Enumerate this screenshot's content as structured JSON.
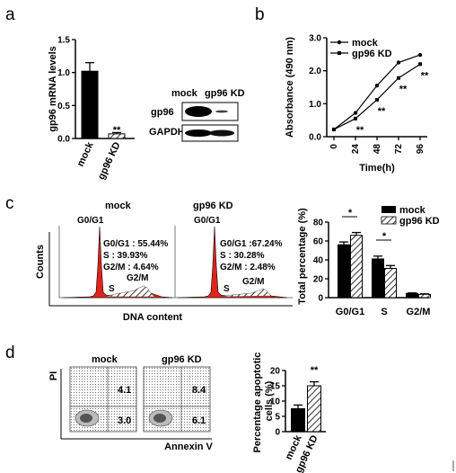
{
  "panels": {
    "a": "a",
    "b": "b",
    "c": "c",
    "d": "d"
  },
  "chart_data": [
    {
      "id": "a_bar",
      "type": "bar",
      "categories": [
        "mock",
        "gp96 KD"
      ],
      "values": [
        1.02,
        0.07
      ],
      "errors": [
        0.13,
        0.02
      ],
      "ylabel": "gp96 mRNA levels",
      "ylim": [
        0,
        1.5
      ],
      "yticks": [
        "0.0",
        "0.5",
        "1.0",
        "1.5"
      ],
      "annotations": [
        "**"
      ]
    },
    {
      "id": "a_blot",
      "type": "table",
      "columns": [
        "mock",
        "gp96 KD"
      ],
      "rows": [
        "gp96",
        "GAPDH"
      ]
    },
    {
      "id": "b_line",
      "type": "line",
      "x": [
        0,
        24,
        48,
        72,
        96
      ],
      "series": [
        {
          "name": "mock",
          "values": [
            0.22,
            0.72,
            1.55,
            2.25,
            2.48
          ]
        },
        {
          "name": "gp96 KD",
          "values": [
            0.22,
            0.55,
            1.12,
            1.78,
            2.2
          ]
        }
      ],
      "xlabel": "Time(h)",
      "ylabel": "Absorbance (490 nm)",
      "ylim": [
        0,
        3
      ],
      "yticks": [
        "0.0",
        "1.0",
        "2.0",
        "3.0"
      ],
      "xticks": [
        "0",
        "24",
        "48",
        "72",
        "96"
      ],
      "annotations": [
        "**",
        "**",
        "**",
        "**"
      ]
    },
    {
      "id": "c_flow",
      "type": "area",
      "xlabel": "DNA  content",
      "ylabel": "Counts",
      "histograms": [
        {
          "title": "mock",
          "peak": "G0/G1",
          "s": "S",
          "g2m": "G2/M",
          "stats": [
            "G0/G1 : 55.44%",
            "S  : 39.93%",
            "G2/M : 4.64%"
          ]
        },
        {
          "title": "gp96 KD",
          "peak": "G0/G1",
          "s": "S",
          "g2m": "G2/M",
          "stats": [
            "G0/G1 :67.24%",
            "S  : 30.28%",
            "G2/M : 2.48%"
          ]
        }
      ]
    },
    {
      "id": "c_bar",
      "type": "bar",
      "categories": [
        "G0/G1",
        "S",
        "G2/M"
      ],
      "series": [
        {
          "name": "mock",
          "values": [
            56,
            41,
            4.5
          ],
          "errors": [
            3,
            3,
            0.5
          ]
        },
        {
          "name": "gp96 KD",
          "values": [
            66,
            31,
            3.5
          ],
          "errors": [
            3,
            3,
            0.5
          ]
        }
      ],
      "ylabel": "Total percentage (%)",
      "ylim": [
        0,
        80
      ],
      "yticks": [
        "0",
        "20",
        "40",
        "60",
        "80"
      ],
      "annotations": [
        "*",
        "*"
      ]
    },
    {
      "id": "d_flow",
      "type": "scatter",
      "plots": [
        {
          "title": "mock",
          "upper_right": "4.1",
          "lower_right": "3.0"
        },
        {
          "title": "gp96 KD",
          "upper_right": "8.4",
          "lower_right": "6.1"
        }
      ],
      "xlabel": "Annexin V",
      "ylabel": "PI"
    },
    {
      "id": "d_bar",
      "type": "bar",
      "categories": [
        "mock",
        "gp96 KD"
      ],
      "values": [
        7.5,
        15
      ],
      "errors": [
        1.2,
        1.3
      ],
      "ylabel": "Percentage apoptotic cells (%)",
      "ylim": [
        0,
        20
      ],
      "yticks": [
        "0",
        "5",
        "10",
        "15",
        "20"
      ],
      "annotations": [
        "**"
      ]
    }
  ]
}
